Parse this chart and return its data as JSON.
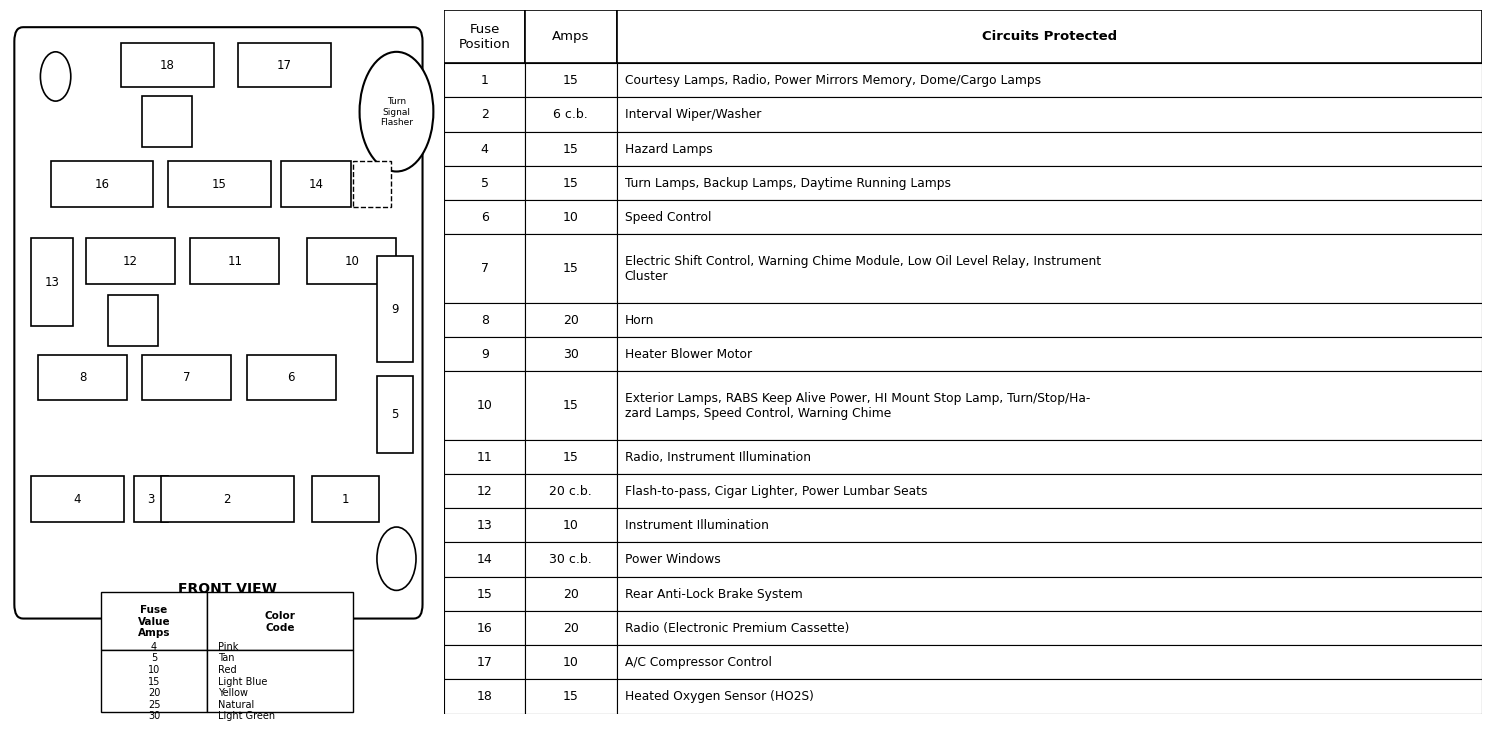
{
  "title_left": "FRONT VIEW",
  "table_header": [
    "Fuse\nPosition",
    "Amps",
    "Circuits Protected"
  ],
  "table_data": [
    [
      "1",
      "15",
      "Courtesy Lamps, Radio, Power Mirrors Memory, Dome/Cargo Lamps"
    ],
    [
      "2",
      "6 c.b.",
      "Interval Wiper/Washer"
    ],
    [
      "4",
      "15",
      "Hazard Lamps"
    ],
    [
      "5",
      "15",
      "Turn Lamps, Backup Lamps, Daytime Running Lamps"
    ],
    [
      "6",
      "10",
      "Speed Control"
    ],
    [
      "7",
      "15",
      "Electric Shift Control, Warning Chime Module, Low Oil Level Relay, Instrument\nCluster"
    ],
    [
      "8",
      "20",
      "Horn"
    ],
    [
      "9",
      "30",
      "Heater Blower Motor"
    ],
    [
      "10",
      "15",
      "Exterior Lamps, RABS Keep Alive Power, HI Mount Stop Lamp, Turn/Stop/Ha-\nzard Lamps, Speed Control, Warning Chime"
    ],
    [
      "11",
      "15",
      "Radio, Instrument Illumination"
    ],
    [
      "12",
      "20 c.b.",
      "Flash-to-pass, Cigar Lighter, Power Lumbar Seats"
    ],
    [
      "13",
      "10",
      "Instrument Illumination"
    ],
    [
      "14",
      "30 c.b.",
      "Power Windows"
    ],
    [
      "15",
      "20",
      "Rear Anti-Lock Brake System"
    ],
    [
      "16",
      "20",
      "Radio (Electronic Premium Cassette)"
    ],
    [
      "17",
      "10",
      "A/C Compressor Control"
    ],
    [
      "18",
      "15",
      "Heated Oxygen Sensor (HO2S)"
    ]
  ],
  "color_table_data": [
    [
      "4",
      "Pink"
    ],
    [
      "5",
      "Tan"
    ],
    [
      "10",
      "Red"
    ],
    [
      "15",
      "Light Blue"
    ],
    [
      "20",
      "Yellow"
    ],
    [
      "25",
      "Natural"
    ],
    [
      "30",
      "Light Green"
    ]
  ],
  "bg_color": "#ffffff",
  "line_color": "#000000",
  "text_color": "#000000"
}
